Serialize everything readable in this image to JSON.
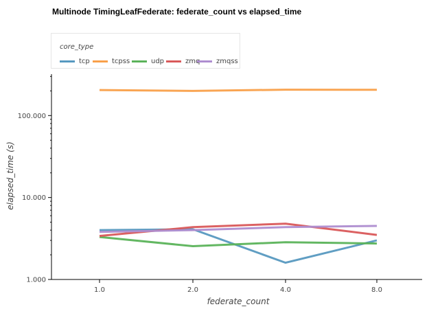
{
  "title": "Multinode TimingLeafFederate: federate_count vs elapsed_time",
  "legend": {
    "title": "core_type",
    "items": [
      {
        "label": "tcp",
        "color": "#5799c0"
      },
      {
        "label": "tcpss",
        "color": "#f9a04a"
      },
      {
        "label": "udp",
        "color": "#5bb35a"
      },
      {
        "label": "zmq",
        "color": "#d9595a"
      },
      {
        "label": "zmqss",
        "color": "#ae8dd0"
      }
    ]
  },
  "chart_data": {
    "type": "line",
    "title": "Multinode TimingLeafFederate: federate_count vs elapsed_time",
    "xlabel": "federate_count",
    "ylabel": "elapsed_time (s)",
    "categories": [
      "1.0",
      "2.0",
      "4.0",
      "8.0"
    ],
    "yscale": "log",
    "ylim": [
      1,
      320
    ],
    "yticks": [
      1,
      10,
      100
    ],
    "ytick_labels": [
      "1.000",
      "10.000",
      "100.000"
    ],
    "legend_title": "core_type",
    "legend_position": "top-left",
    "grid": false,
    "series": [
      {
        "name": "tcp",
        "color": "#5799c0",
        "values": [
          4.0,
          4.1,
          1.6,
          3.0
        ]
      },
      {
        "name": "tcpss",
        "color": "#f9a04a",
        "values": [
          205,
          200,
          207,
          206
        ]
      },
      {
        "name": "udp",
        "color": "#5bb35a",
        "values": [
          3.3,
          2.55,
          2.85,
          2.75
        ]
      },
      {
        "name": "zmq",
        "color": "#d9595a",
        "values": [
          3.4,
          4.35,
          4.8,
          3.5
        ]
      },
      {
        "name": "zmqss",
        "color": "#ae8dd0",
        "values": [
          3.8,
          4.0,
          4.35,
          4.5
        ]
      }
    ]
  }
}
